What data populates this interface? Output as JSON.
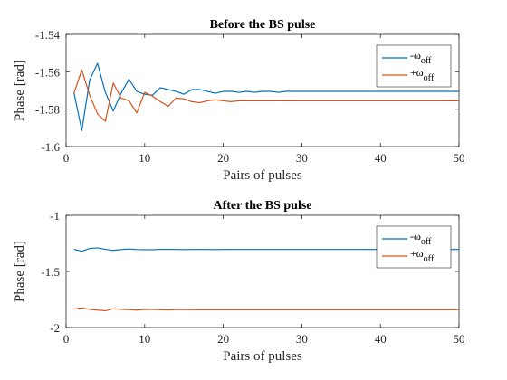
{
  "chart_data": [
    {
      "type": "line",
      "title": "Before the BS pulse",
      "xlabel": "Pairs of pulses",
      "ylabel": "Phase [rad]",
      "xlim": [
        0,
        50
      ],
      "ylim": [
        -1.6,
        -1.54
      ],
      "xticks": [
        "0",
        "10",
        "20",
        "30",
        "40",
        "50"
      ],
      "yticks": [
        "-1.54",
        "-1.56",
        "-1.58",
        "-1.6"
      ],
      "grid": false,
      "legend": "top-right",
      "legend_entries": [
        {
          "base": "-ω",
          "sub": "off"
        },
        {
          "base": "+ω",
          "sub": "off"
        }
      ],
      "x": [
        1,
        2,
        3,
        4,
        5,
        6,
        7,
        8,
        9,
        10,
        11,
        12,
        13,
        14,
        15,
        16,
        17,
        18,
        19,
        20,
        21,
        22,
        23,
        24,
        25,
        26,
        27,
        28,
        29,
        30,
        31,
        32,
        33,
        34,
        35,
        36,
        37,
        38,
        39,
        40,
        41,
        42,
        43,
        44,
        45,
        46,
        47,
        48,
        49,
        50
      ],
      "series": [
        {
          "color": "#0072BD",
          "values": [
            -1.571,
            -1.5915,
            -1.5645,
            -1.5555,
            -1.571,
            -1.581,
            -1.5715,
            -1.564,
            -1.5705,
            -1.572,
            -1.5725,
            -1.5685,
            -1.5695,
            -1.5705,
            -1.572,
            -1.5695,
            -1.5695,
            -1.5705,
            -1.5715,
            -1.5705,
            -1.5705,
            -1.571,
            -1.5705,
            -1.571,
            -1.5705,
            -1.5705,
            -1.571,
            -1.5705,
            -1.5705,
            -1.5705,
            -1.5705,
            -1.5705,
            -1.5705,
            -1.5705,
            -1.5705,
            -1.5705,
            -1.5705,
            -1.5705,
            -1.5705,
            -1.5705,
            -1.5705,
            -1.5705,
            -1.5705,
            -1.5705,
            -1.5705,
            -1.5705,
            -1.5705,
            -1.5705,
            -1.5705,
            -1.5705
          ]
        },
        {
          "color": "#D95319",
          "values": [
            -1.5715,
            -1.559,
            -1.5725,
            -1.5825,
            -1.5865,
            -1.566,
            -1.574,
            -1.5755,
            -1.582,
            -1.571,
            -1.573,
            -1.576,
            -1.5785,
            -1.574,
            -1.5745,
            -1.576,
            -1.5765,
            -1.5755,
            -1.575,
            -1.5755,
            -1.576,
            -1.5755,
            -1.5755,
            -1.5755,
            -1.5755,
            -1.5755,
            -1.5755,
            -1.5755,
            -1.5755,
            -1.5755,
            -1.5755,
            -1.5755,
            -1.5755,
            -1.5755,
            -1.5755,
            -1.5755,
            -1.5755,
            -1.5755,
            -1.5755,
            -1.5755,
            -1.5755,
            -1.5755,
            -1.5755,
            -1.5755,
            -1.5755,
            -1.5755,
            -1.5755,
            -1.5755,
            -1.5755,
            -1.5755
          ]
        }
      ]
    },
    {
      "type": "line",
      "title": "After the BS pulse",
      "xlabel": "Pairs of pulses",
      "ylabel": "Phase [rad]",
      "xlim": [
        0,
        50
      ],
      "ylim": [
        -2,
        -1
      ],
      "xticks": [
        "0",
        "10",
        "20",
        "30",
        "40",
        "50"
      ],
      "yticks": [
        "-1",
        "-1.5",
        "-2"
      ],
      "grid": false,
      "legend": "top-right",
      "legend_entries": [
        {
          "base": "-ω",
          "sub": "off"
        },
        {
          "base": "+ω",
          "sub": "off"
        }
      ],
      "x": [
        1,
        2,
        3,
        4,
        5,
        6,
        7,
        8,
        9,
        10,
        11,
        12,
        13,
        14,
        15,
        16,
        17,
        18,
        19,
        20,
        21,
        22,
        23,
        24,
        25,
        26,
        27,
        28,
        29,
        30,
        31,
        32,
        33,
        34,
        35,
        36,
        37,
        38,
        39,
        40,
        41,
        42,
        43,
        44,
        45,
        46,
        47,
        48,
        49,
        50
      ],
      "series": [
        {
          "color": "#0072BD",
          "values": [
            -1.303,
            -1.32,
            -1.295,
            -1.29,
            -1.303,
            -1.312,
            -1.305,
            -1.3,
            -1.305,
            -1.306,
            -1.306,
            -1.303,
            -1.303,
            -1.304,
            -1.305,
            -1.304,
            -1.304,
            -1.304,
            -1.305,
            -1.304,
            -1.304,
            -1.304,
            -1.304,
            -1.304,
            -1.304,
            -1.304,
            -1.304,
            -1.304,
            -1.304,
            -1.304,
            -1.304,
            -1.304,
            -1.304,
            -1.304,
            -1.304,
            -1.304,
            -1.304,
            -1.304,
            -1.304,
            -1.304,
            -1.304,
            -1.304,
            -1.304,
            -1.304,
            -1.304,
            -1.304,
            -1.304,
            -1.304,
            -1.304,
            -1.304
          ]
        },
        {
          "color": "#D95319",
          "values": [
            -1.835,
            -1.825,
            -1.838,
            -1.845,
            -1.85,
            -1.833,
            -1.838,
            -1.84,
            -1.845,
            -1.838,
            -1.839,
            -1.841,
            -1.843,
            -1.84,
            -1.84,
            -1.841,
            -1.841,
            -1.841,
            -1.841,
            -1.841,
            -1.841,
            -1.841,
            -1.841,
            -1.841,
            -1.841,
            -1.841,
            -1.841,
            -1.841,
            -1.841,
            -1.841,
            -1.841,
            -1.841,
            -1.841,
            -1.841,
            -1.841,
            -1.841,
            -1.841,
            -1.841,
            -1.841,
            -1.841,
            -1.841,
            -1.841,
            -1.841,
            -1.841,
            -1.841,
            -1.841,
            -1.841,
            -1.841,
            -1.841,
            -1.841
          ]
        }
      ]
    }
  ]
}
